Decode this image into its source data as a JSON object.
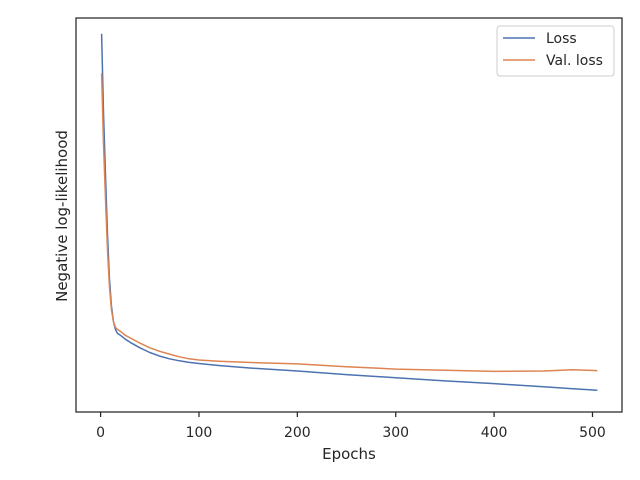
{
  "chart_data": {
    "type": "line",
    "xlabel": "Epochs",
    "ylabel": "Negative log-likelihood",
    "xlim": [
      -25,
      530
    ],
    "ylim": [
      0,
      1
    ],
    "xticks": [
      0,
      100,
      200,
      300,
      400,
      500
    ],
    "yticks_shown": false,
    "grid": false,
    "legend_position": "top-right",
    "series": [
      {
        "name": "Loss",
        "color": "#4c72b0",
        "x": [
          1,
          3,
          5,
          7,
          9,
          11,
          13,
          15,
          17,
          20,
          25,
          30,
          40,
          50,
          60,
          70,
          80,
          90,
          100,
          120,
          150,
          200,
          250,
          300,
          350,
          400,
          450,
          480,
          505
        ],
        "y": [
          0.96,
          0.76,
          0.6,
          0.45,
          0.34,
          0.27,
          0.23,
          0.21,
          0.2,
          0.195,
          0.185,
          0.177,
          0.163,
          0.151,
          0.142,
          0.135,
          0.13,
          0.126,
          0.123,
          0.118,
          0.112,
          0.104,
          0.095,
          0.087,
          0.079,
          0.072,
          0.064,
          0.059,
          0.055
        ]
      },
      {
        "name": "Val. loss",
        "color": "#dd8452",
        "x": [
          1,
          3,
          5,
          7,
          9,
          11,
          13,
          15,
          17,
          20,
          25,
          30,
          40,
          50,
          60,
          70,
          80,
          90,
          100,
          120,
          150,
          200,
          250,
          300,
          350,
          400,
          450,
          480,
          505
        ],
        "y": [
          0.86,
          0.68,
          0.54,
          0.41,
          0.32,
          0.26,
          0.23,
          0.215,
          0.21,
          0.205,
          0.195,
          0.188,
          0.175,
          0.163,
          0.154,
          0.147,
          0.14,
          0.135,
          0.132,
          0.129,
          0.126,
          0.122,
          0.115,
          0.109,
          0.106,
          0.103,
          0.104,
          0.107,
          0.105
        ]
      }
    ]
  }
}
